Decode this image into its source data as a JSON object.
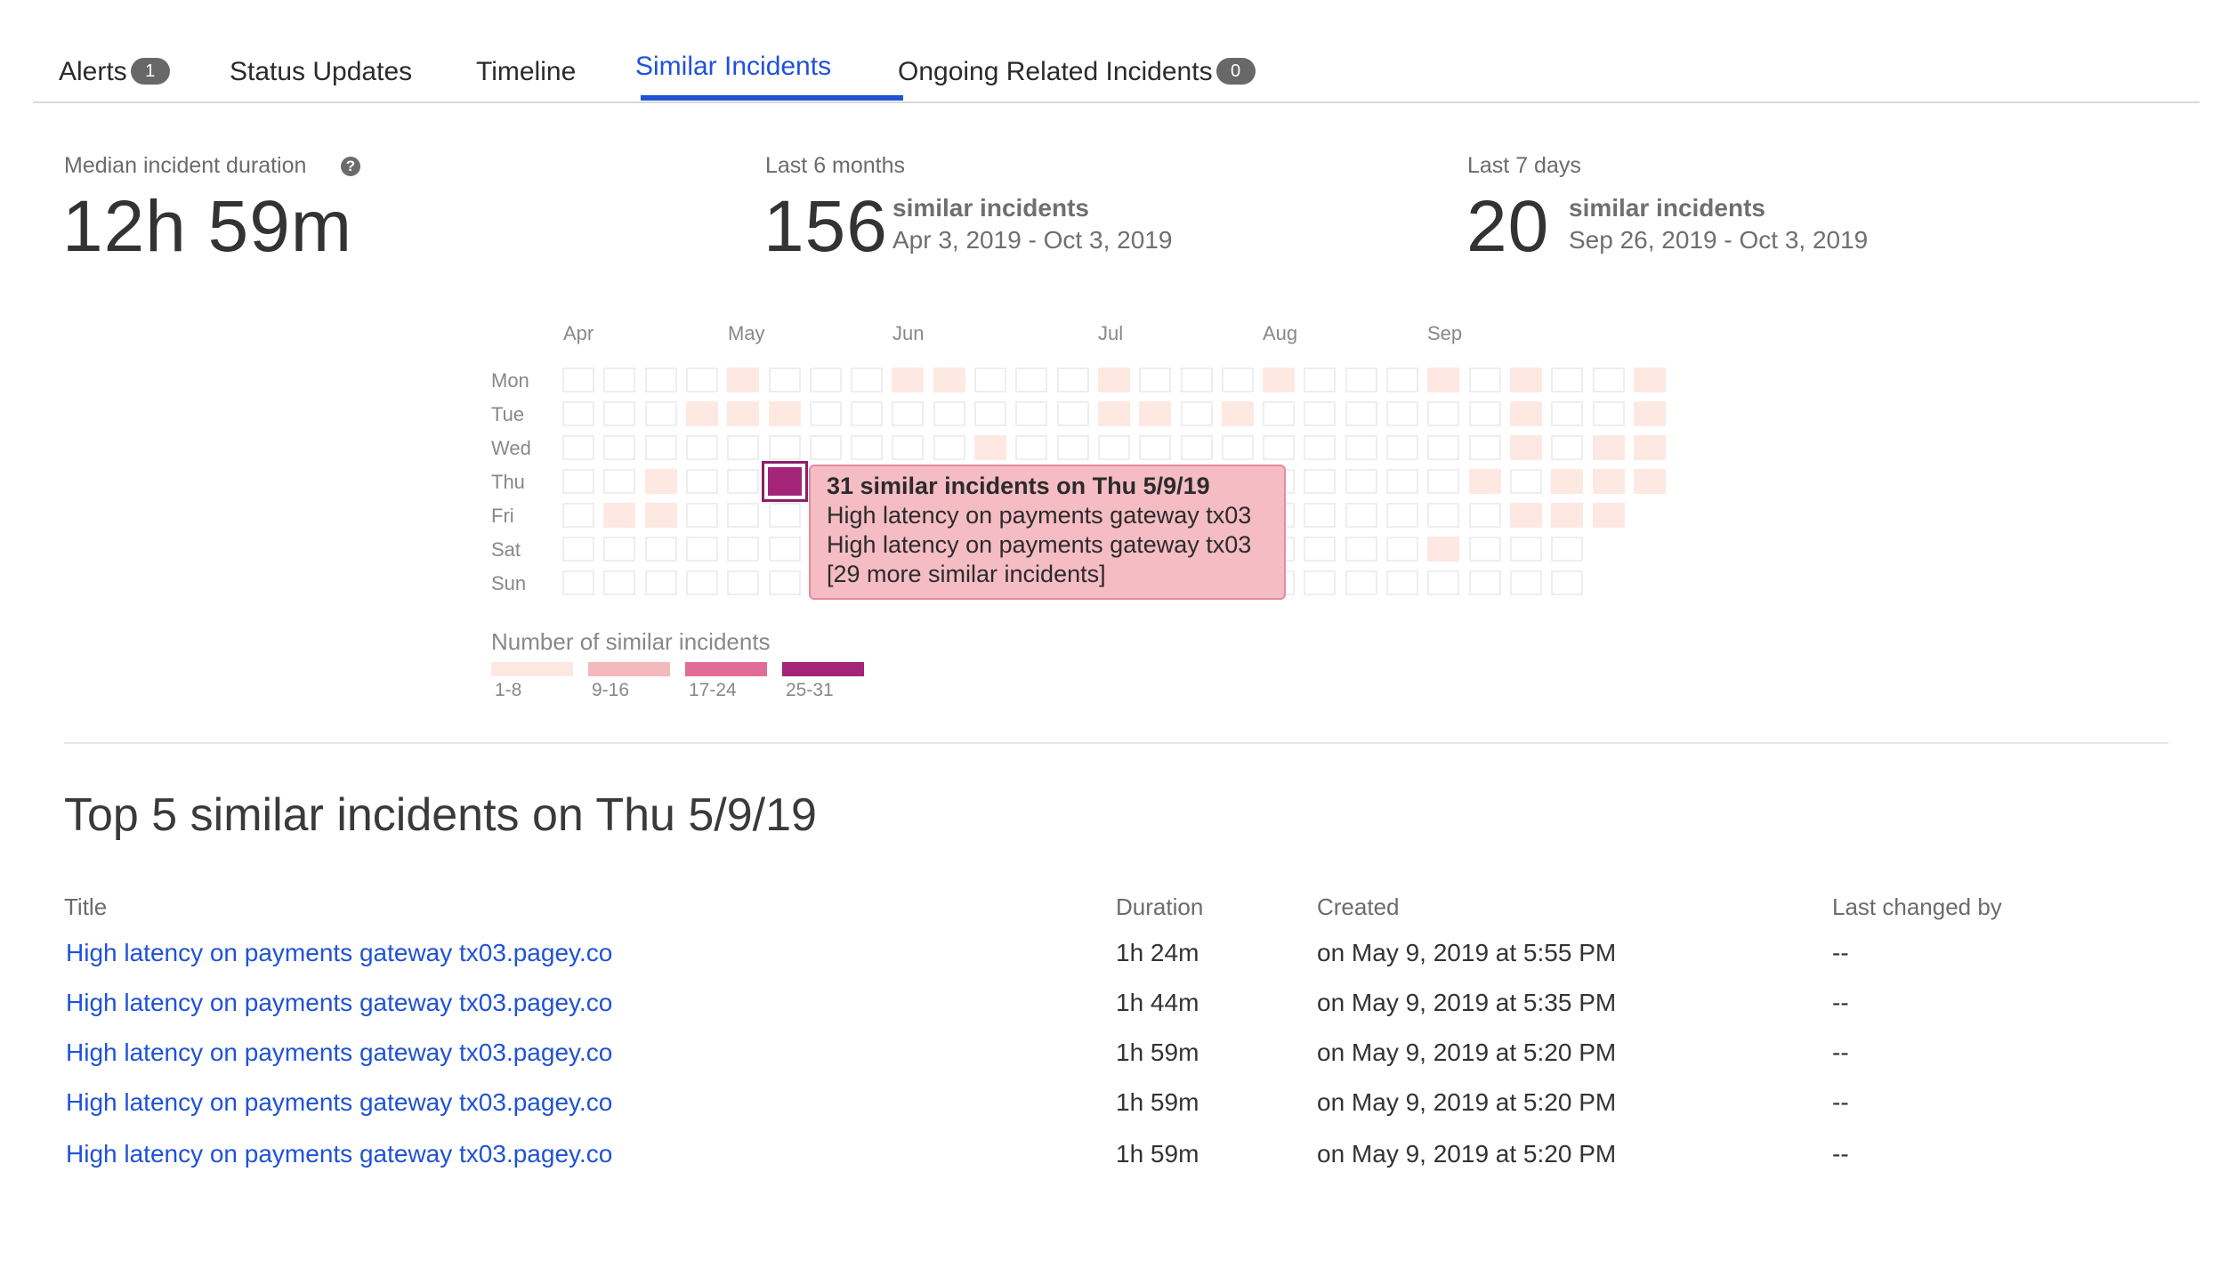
{
  "tabs": [
    {
      "label": "Alerts",
      "badge": "1"
    },
    {
      "label": "Status Updates"
    },
    {
      "label": "Timeline"
    },
    {
      "label": "Similar Incidents",
      "active": true
    },
    {
      "label": "Ongoing Related Incidents",
      "badge": "0"
    }
  ],
  "stats": {
    "median": {
      "label": "Median incident duration",
      "value": "12h 59m"
    },
    "six_months": {
      "label": "Last 6 months",
      "count": "156",
      "unit": "similar incidents",
      "range": "Apr 3, 2019 - Oct 3, 2019"
    },
    "seven_days": {
      "label": "Last 7 days",
      "count": "20",
      "unit": "similar incidents",
      "range": "Sep 26, 2019 - Oct 3, 2019"
    }
  },
  "heatmap": {
    "months": [
      "Apr",
      "May",
      "Jun",
      "Jul",
      "Aug",
      "Sep"
    ],
    "days": [
      "Mon",
      "Tue",
      "Wed",
      "Thu",
      "Fri",
      "Sat",
      "Sun"
    ],
    "tooltip": {
      "title": "31 similar incidents on Thu 5/9/19",
      "lines": [
        "High latency on payments gateway tx03",
        "High latency on payments gateway tx03",
        "[29 more similar incidents]"
      ]
    },
    "legend": {
      "title": "Number of similar incidents",
      "bins": [
        {
          "label": "1-8",
          "color": "#fde9e2"
        },
        {
          "label": "9-16",
          "color": "#f3b9bd"
        },
        {
          "label": "17-24",
          "color": "#e26c98"
        },
        {
          "label": "25-31",
          "color": "#a32479"
        }
      ]
    }
  },
  "top": {
    "title": "Top 5 similar incidents on Thu 5/9/19",
    "columns": {
      "title": "Title",
      "duration": "Duration",
      "created": "Created",
      "changed": "Last changed by"
    },
    "rows": [
      {
        "title": "High latency on payments gateway tx03.pagey.co",
        "duration": "1h 24m",
        "created": "on May 9, 2019 at 5:55 PM",
        "changed": "--"
      },
      {
        "title": "High latency on payments gateway tx03.pagey.co",
        "duration": "1h 44m",
        "created": "on May 9, 2019 at 5:35 PM",
        "changed": "--"
      },
      {
        "title": "High latency on payments gateway tx03.pagey.co",
        "duration": "1h 59m",
        "created": "on May 9, 2019 at 5:20 PM",
        "changed": "--"
      },
      {
        "title": "High latency on payments gateway tx03.pagey.co",
        "duration": "1h 59m",
        "created": "on May 9, 2019 at 5:20 PM",
        "changed": "--"
      },
      {
        "title": "High latency on payments gateway tx03.pagey.co",
        "duration": "1h 59m",
        "created": "on May 9, 2019 at 5:20 PM",
        "changed": "--"
      }
    ]
  }
}
